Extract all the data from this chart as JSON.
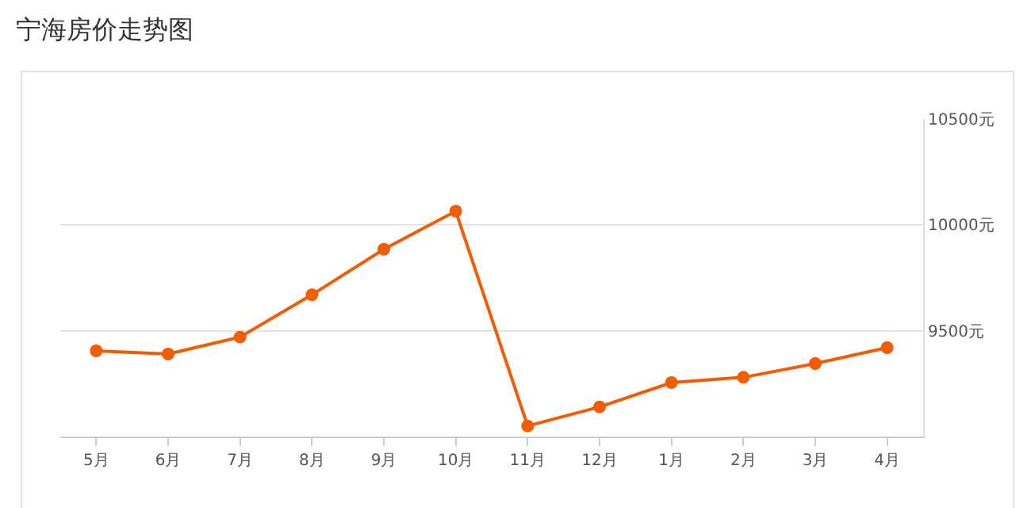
{
  "chart_data": {
    "type": "line",
    "title": "宁海房价走势图",
    "categories": [
      "5月",
      "6月",
      "7月",
      "8月",
      "9月",
      "10月",
      "11月",
      "12月",
      "1月",
      "2月",
      "3月",
      "4月"
    ],
    "series": [
      {
        "color": "#f25c05",
        "values": [
          9405,
          9390,
          9470,
          9670,
          9885,
          10065,
          9050,
          9140,
          9255,
          9280,
          9345,
          9420
        ]
      }
    ],
    "ylim": [
      9000,
      10500
    ],
    "yticks": [
      {
        "value": 9500,
        "label": "9500元"
      },
      {
        "value": 10000,
        "label": "10000元"
      },
      {
        "value": 10500,
        "label": "10500元"
      }
    ],
    "grid": "y",
    "marker": "circle",
    "line_style": "solid"
  }
}
